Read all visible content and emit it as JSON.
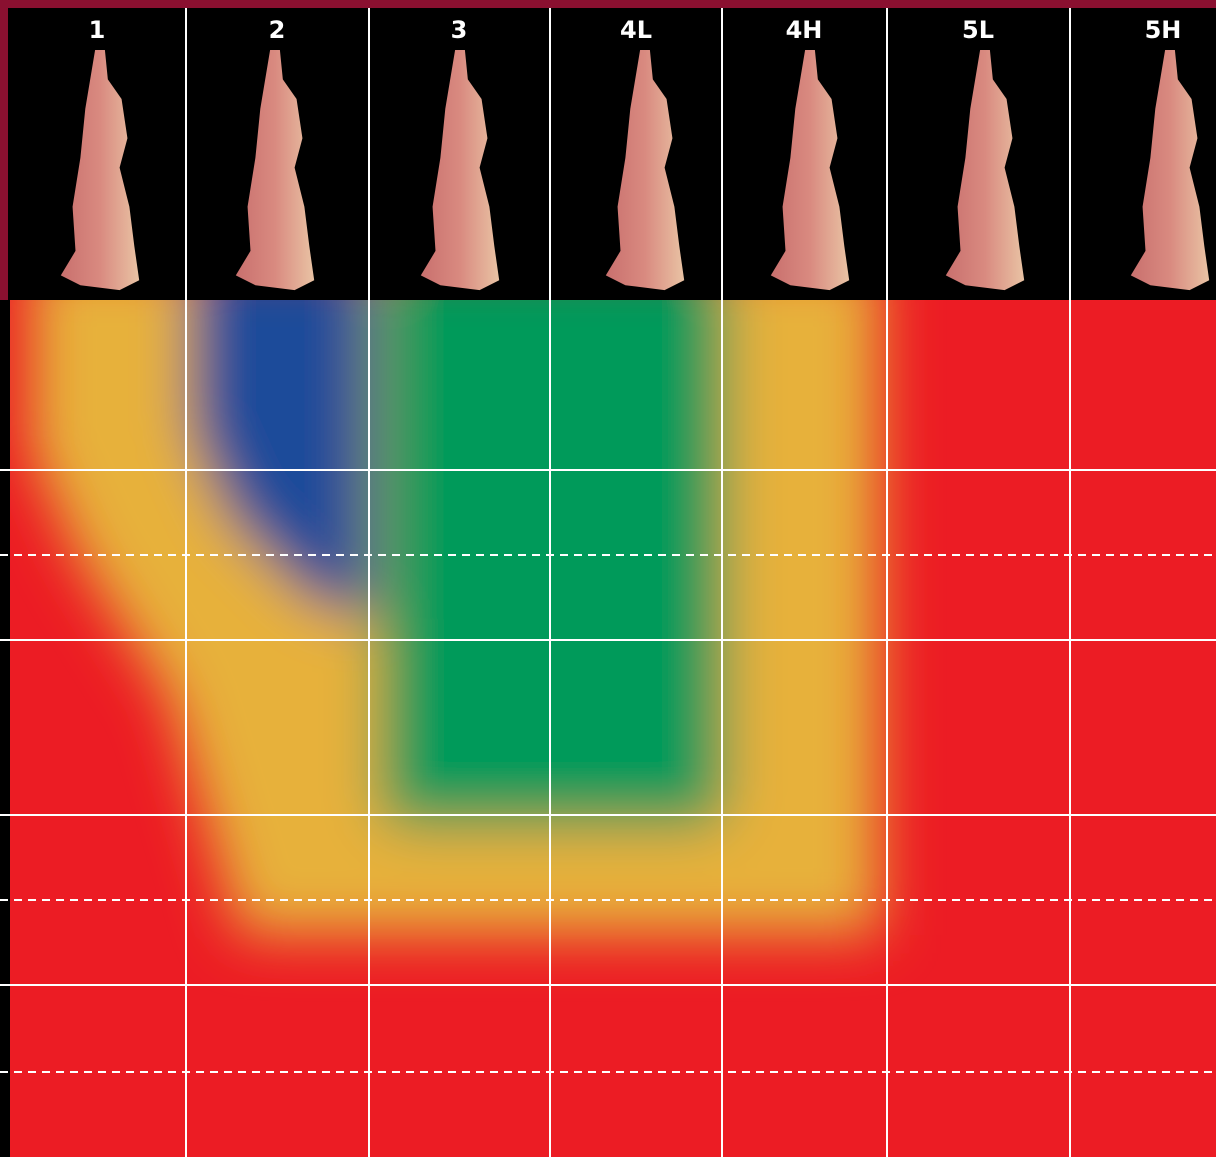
{
  "columns": [
    "1",
    "2",
    "3",
    "4L",
    "4H",
    "5L",
    "5H"
  ]
}
